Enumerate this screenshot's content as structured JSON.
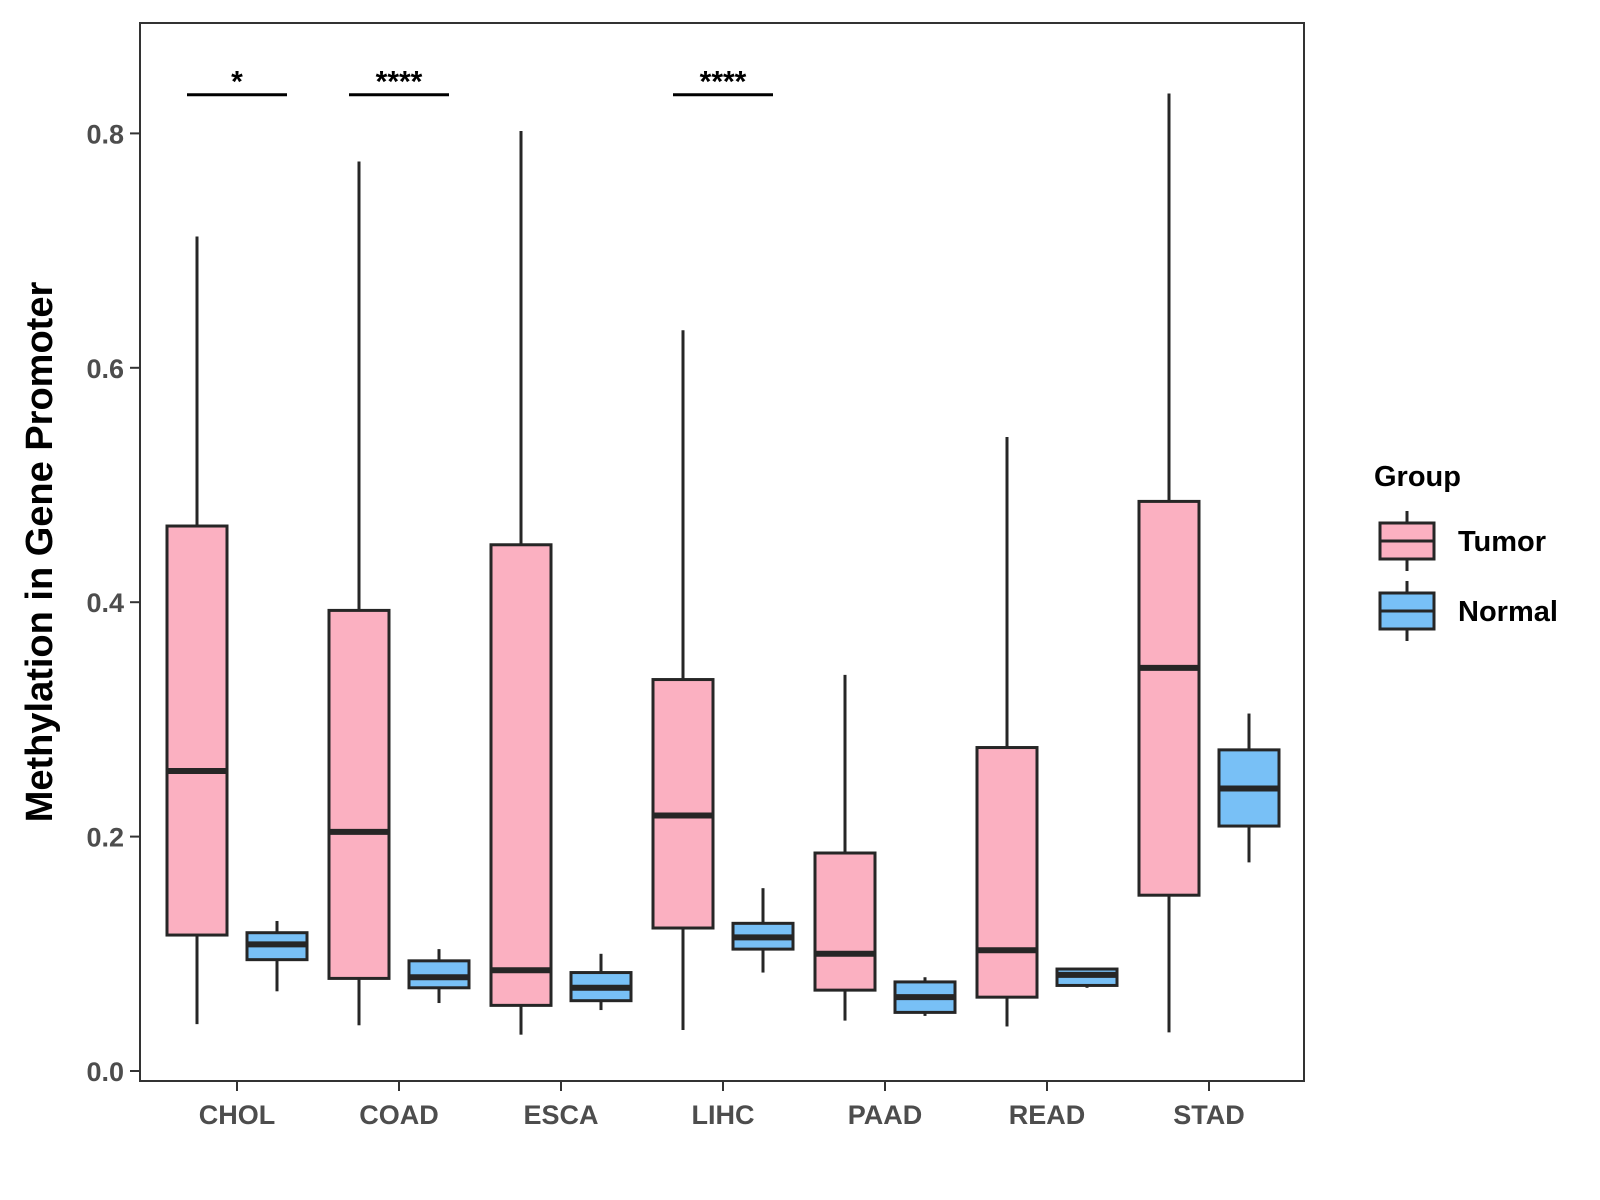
{
  "chart_data": {
    "type": "boxplot",
    "title": "",
    "xlabel": "",
    "ylabel": "Methylation in Gene Promoter",
    "ylim": [
      0,
      0.89
    ],
    "y_ticks": [
      "0.0",
      "0.2",
      "0.4",
      "0.6",
      "0.8"
    ],
    "y_tick_values": [
      0,
      0.2,
      0.4,
      0.6,
      0.8
    ],
    "grid": false,
    "legend_position": "right",
    "categories": [
      "CHOL",
      "COAD",
      "ESCA",
      "LIHC",
      "PAAD",
      "READ",
      "STAD"
    ],
    "legend": {
      "title": "Group",
      "entries": [
        "Tumor",
        "Normal"
      ]
    },
    "series": [
      {
        "name": "Tumor",
        "color": "#fbb0c1",
        "boxes": [
          {
            "category": "CHOL",
            "min": 0.04,
            "q1": 0.116,
            "median": 0.256,
            "q3": 0.465,
            "max": 0.712
          },
          {
            "category": "COAD",
            "min": 0.039,
            "q1": 0.079,
            "median": 0.204,
            "q3": 0.393,
            "max": 0.776
          },
          {
            "category": "ESCA",
            "min": 0.031,
            "q1": 0.056,
            "median": 0.086,
            "q3": 0.449,
            "max": 0.802
          },
          {
            "category": "LIHC",
            "min": 0.035,
            "q1": 0.122,
            "median": 0.218,
            "q3": 0.334,
            "max": 0.632
          },
          {
            "category": "PAAD",
            "min": 0.043,
            "q1": 0.069,
            "median": 0.1,
            "q3": 0.186,
            "max": 0.338
          },
          {
            "category": "READ",
            "min": 0.038,
            "q1": 0.063,
            "median": 0.103,
            "q3": 0.276,
            "max": 0.541
          },
          {
            "category": "STAD",
            "min": 0.033,
            "q1": 0.15,
            "median": 0.344,
            "q3": 0.486,
            "max": 0.834
          }
        ]
      },
      {
        "name": "Normal",
        "color": "#78c0f6",
        "boxes": [
          {
            "category": "CHOL",
            "min": 0.068,
            "q1": 0.095,
            "median": 0.108,
            "q3": 0.118,
            "max": 0.128
          },
          {
            "category": "COAD",
            "min": 0.058,
            "q1": 0.071,
            "median": 0.08,
            "q3": 0.094,
            "max": 0.104
          },
          {
            "category": "ESCA",
            "min": 0.052,
            "q1": 0.06,
            "median": 0.071,
            "q3": 0.084,
            "max": 0.1
          },
          {
            "category": "LIHC",
            "min": 0.084,
            "q1": 0.104,
            "median": 0.114,
            "q3": 0.126,
            "max": 0.156
          },
          {
            "category": "PAAD",
            "min": 0.047,
            "q1": 0.05,
            "median": 0.063,
            "q3": 0.076,
            "max": 0.08
          },
          {
            "category": "READ",
            "min": 0.071,
            "q1": 0.073,
            "median": 0.082,
            "q3": 0.087,
            "max": 0.087
          },
          {
            "category": "STAD",
            "min": 0.178,
            "q1": 0.209,
            "median": 0.241,
            "q3": 0.274,
            "max": 0.305
          }
        ]
      }
    ],
    "annotations": [
      {
        "category": "CHOL",
        "label": "*",
        "y": 0.833
      },
      {
        "category": "COAD",
        "label": "****",
        "y": 0.833
      },
      {
        "category": "LIHC",
        "label": "****",
        "y": 0.833
      }
    ]
  }
}
